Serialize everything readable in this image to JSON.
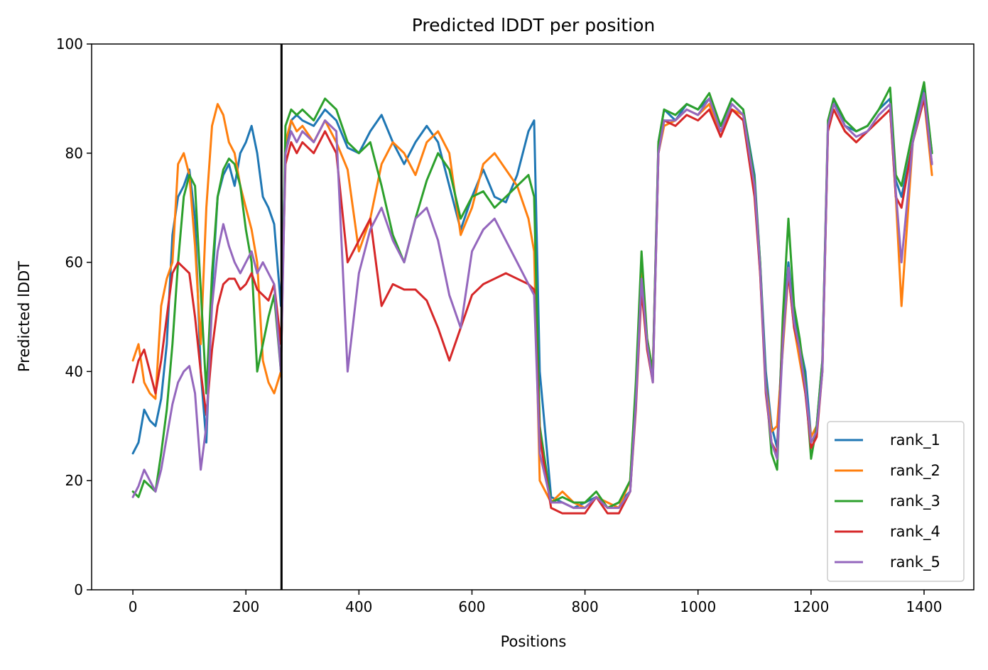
{
  "chart_data": {
    "type": "line",
    "title": "Predicted lDDT per position",
    "xlabel": "Positions",
    "ylabel": "Predicted lDDT",
    "xlim": [
      -73,
      1488
    ],
    "ylim": [
      0,
      100
    ],
    "xticks": [
      0,
      200,
      400,
      600,
      800,
      1000,
      1200,
      1400
    ],
    "yticks": [
      0,
      20,
      40,
      60,
      80,
      100
    ],
    "grid": false,
    "legend_position": "lower-right",
    "vline": {
      "x": 263,
      "color": "#000000"
    },
    "series": [
      {
        "name": "rank_1",
        "color": "#1f77b4",
        "x": [
          0,
          10,
          20,
          30,
          40,
          50,
          60,
          70,
          80,
          90,
          100,
          110,
          120,
          130,
          140,
          150,
          160,
          170,
          180,
          190,
          200,
          210,
          220,
          230,
          240,
          250,
          262,
          270,
          280,
          290,
          300,
          320,
          340,
          360,
          380,
          400,
          420,
          440,
          460,
          480,
          500,
          520,
          540,
          560,
          580,
          600,
          620,
          640,
          660,
          680,
          700,
          710,
          720,
          740,
          760,
          780,
          800,
          820,
          840,
          860,
          880,
          890,
          900,
          910,
          920,
          930,
          940,
          960,
          980,
          1000,
          1020,
          1040,
          1060,
          1080,
          1100,
          1110,
          1120,
          1130,
          1140,
          1150,
          1160,
          1170,
          1180,
          1190,
          1200,
          1210,
          1220,
          1230,
          1240,
          1260,
          1280,
          1300,
          1320,
          1340,
          1350,
          1360,
          1380,
          1400,
          1414
        ],
        "y": [
          25,
          27,
          33,
          31,
          30,
          35,
          45,
          65,
          72,
          74,
          77,
          68,
          40,
          27,
          55,
          72,
          76,
          78,
          74,
          80,
          82,
          85,
          80,
          72,
          70,
          67,
          52,
          80,
          86,
          87,
          86,
          85,
          88,
          86,
          81,
          80,
          84,
          87,
          82,
          78,
          82,
          85,
          82,
          74,
          66,
          72,
          77,
          72,
          71,
          76,
          84,
          86,
          40,
          17,
          16,
          15,
          16,
          17,
          15,
          16,
          18,
          35,
          60,
          45,
          40,
          82,
          88,
          86,
          89,
          88,
          90,
          85,
          90,
          88,
          76,
          60,
          40,
          30,
          26,
          48,
          60,
          50,
          45,
          40,
          28,
          30,
          42,
          85,
          90,
          85,
          84,
          85,
          88,
          90,
          75,
          72,
          82,
          92,
          80
        ]
      },
      {
        "name": "rank_2",
        "color": "#ff7f0e",
        "x": [
          0,
          10,
          20,
          30,
          40,
          50,
          60,
          70,
          80,
          90,
          100,
          110,
          120,
          130,
          140,
          150,
          160,
          170,
          180,
          190,
          200,
          210,
          220,
          230,
          240,
          250,
          262,
          270,
          280,
          290,
          300,
          320,
          340,
          360,
          380,
          400,
          420,
          440,
          460,
          480,
          500,
          520,
          540,
          560,
          580,
          600,
          620,
          640,
          660,
          680,
          700,
          710,
          720,
          740,
          760,
          780,
          800,
          820,
          840,
          860,
          880,
          890,
          900,
          910,
          920,
          930,
          940,
          960,
          980,
          1000,
          1020,
          1040,
          1060,
          1080,
          1100,
          1110,
          1120,
          1130,
          1140,
          1150,
          1160,
          1170,
          1180,
          1190,
          1200,
          1210,
          1220,
          1230,
          1240,
          1260,
          1280,
          1300,
          1320,
          1340,
          1350,
          1360,
          1380,
          1400,
          1414
        ],
        "y": [
          42,
          45,
          38,
          36,
          35,
          52,
          57,
          60,
          78,
          80,
          76,
          63,
          45,
          70,
          85,
          89,
          87,
          82,
          80,
          74,
          70,
          66,
          60,
          42,
          38,
          36,
          40,
          82,
          86,
          84,
          85,
          82,
          86,
          82,
          77,
          62,
          68,
          78,
          82,
          80,
          76,
          82,
          84,
          80,
          65,
          70,
          78,
          80,
          77,
          74,
          68,
          62,
          20,
          16,
          18,
          16,
          15,
          17,
          16,
          15,
          20,
          37,
          58,
          46,
          40,
          80,
          85,
          86,
          88,
          87,
          89,
          83,
          88,
          87,
          74,
          58,
          38,
          29,
          30,
          44,
          58,
          48,
          42,
          36,
          28,
          30,
          40,
          85,
          88,
          84,
          82,
          84,
          86,
          88,
          72,
          52,
          82,
          90,
          76
        ]
      },
      {
        "name": "rank_3",
        "color": "#2ca02c",
        "x": [
          0,
          10,
          20,
          30,
          40,
          50,
          60,
          70,
          80,
          90,
          100,
          110,
          120,
          130,
          140,
          150,
          160,
          170,
          180,
          190,
          200,
          210,
          220,
          230,
          240,
          250,
          262,
          270,
          280,
          290,
          300,
          320,
          340,
          360,
          380,
          400,
          420,
          440,
          460,
          480,
          500,
          520,
          540,
          560,
          580,
          600,
          620,
          640,
          660,
          680,
          700,
          710,
          720,
          740,
          760,
          780,
          800,
          820,
          840,
          860,
          880,
          890,
          900,
          910,
          920,
          930,
          940,
          960,
          980,
          1000,
          1020,
          1040,
          1060,
          1080,
          1100,
          1110,
          1120,
          1130,
          1140,
          1150,
          1160,
          1170,
          1180,
          1190,
          1200,
          1210,
          1220,
          1230,
          1240,
          1260,
          1280,
          1300,
          1320,
          1340,
          1350,
          1360,
          1380,
          1400,
          1414
        ],
        "y": [
          18,
          17,
          20,
          19,
          18,
          25,
          33,
          45,
          60,
          72,
          76,
          74,
          55,
          36,
          58,
          72,
          77,
          79,
          78,
          74,
          66,
          60,
          40,
          45,
          50,
          54,
          40,
          85,
          88,
          87,
          88,
          86,
          90,
          88,
          82,
          80,
          82,
          74,
          65,
          60,
          68,
          75,
          80,
          77,
          68,
          72,
          73,
          70,
          72,
          74,
          76,
          72,
          30,
          16,
          17,
          16,
          16,
          18,
          15,
          16,
          20,
          38,
          62,
          46,
          40,
          82,
          88,
          87,
          89,
          88,
          91,
          85,
          90,
          88,
          75,
          60,
          38,
          25,
          22,
          50,
          68,
          52,
          46,
          38,
          24,
          30,
          42,
          86,
          90,
          86,
          84,
          85,
          88,
          92,
          76,
          74,
          84,
          93,
          80
        ]
      },
      {
        "name": "rank_4",
        "color": "#d62728",
        "x": [
          0,
          10,
          20,
          30,
          40,
          50,
          60,
          70,
          80,
          90,
          100,
          110,
          120,
          130,
          140,
          150,
          160,
          170,
          180,
          190,
          200,
          210,
          220,
          230,
          240,
          250,
          262,
          270,
          280,
          290,
          300,
          320,
          340,
          360,
          380,
          400,
          420,
          440,
          460,
          480,
          500,
          520,
          540,
          560,
          580,
          600,
          620,
          640,
          660,
          680,
          700,
          710,
          720,
          740,
          760,
          780,
          800,
          820,
          840,
          860,
          880,
          890,
          900,
          910,
          920,
          930,
          940,
          960,
          980,
          1000,
          1020,
          1040,
          1060,
          1080,
          1100,
          1110,
          1120,
          1130,
          1140,
          1150,
          1160,
          1170,
          1180,
          1190,
          1200,
          1210,
          1220,
          1230,
          1240,
          1260,
          1280,
          1300,
          1320,
          1340,
          1350,
          1360,
          1380,
          1400,
          1414
        ],
        "y": [
          38,
          42,
          44,
          40,
          36,
          42,
          50,
          58,
          60,
          59,
          58,
          50,
          40,
          32,
          44,
          52,
          56,
          57,
          57,
          55,
          56,
          58,
          55,
          54,
          53,
          56,
          45,
          78,
          82,
          80,
          82,
          80,
          84,
          80,
          60,
          64,
          68,
          52,
          56,
          55,
          55,
          53,
          48,
          42,
          48,
          54,
          56,
          57,
          58,
          57,
          56,
          55,
          28,
          15,
          14,
          14,
          14,
          17,
          14,
          14,
          18,
          33,
          55,
          44,
          38,
          80,
          86,
          85,
          87,
          86,
          88,
          83,
          88,
          86,
          72,
          58,
          36,
          27,
          25,
          46,
          58,
          48,
          44,
          36,
          26,
          28,
          40,
          84,
          88,
          84,
          82,
          84,
          86,
          88,
          72,
          70,
          82,
          90,
          78
        ]
      },
      {
        "name": "rank_5",
        "color": "#9467bd",
        "x": [
          0,
          10,
          20,
          30,
          40,
          50,
          60,
          70,
          80,
          90,
          100,
          110,
          120,
          130,
          140,
          150,
          160,
          170,
          180,
          190,
          200,
          210,
          220,
          230,
          240,
          250,
          262,
          270,
          280,
          290,
          300,
          320,
          340,
          360,
          380,
          400,
          420,
          440,
          460,
          480,
          500,
          520,
          540,
          560,
          580,
          600,
          620,
          640,
          660,
          680,
          700,
          710,
          720,
          740,
          760,
          780,
          800,
          820,
          840,
          860,
          880,
          890,
          900,
          910,
          920,
          930,
          940,
          960,
          980,
          1000,
          1020,
          1040,
          1060,
          1080,
          1100,
          1110,
          1120,
          1130,
          1140,
          1150,
          1160,
          1170,
          1180,
          1190,
          1200,
          1210,
          1220,
          1230,
          1240,
          1260,
          1280,
          1300,
          1320,
          1340,
          1350,
          1360,
          1380,
          1400,
          1414
        ],
        "y": [
          17,
          19,
          22,
          20,
          18,
          22,
          28,
          34,
          38,
          40,
          41,
          36,
          22,
          30,
          52,
          62,
          67,
          63,
          60,
          58,
          60,
          62,
          58,
          60,
          58,
          56,
          40,
          80,
          84,
          82,
          84,
          82,
          86,
          84,
          40,
          58,
          66,
          70,
          64,
          60,
          68,
          70,
          64,
          54,
          48,
          62,
          66,
          68,
          64,
          60,
          56,
          54,
          25,
          16,
          16,
          15,
          15,
          17,
          15,
          15,
          18,
          34,
          57,
          45,
          38,
          80,
          86,
          86,
          88,
          87,
          90,
          84,
          89,
          87,
          74,
          59,
          37,
          27,
          24,
          45,
          59,
          49,
          44,
          37,
          27,
          29,
          40,
          85,
          89,
          85,
          83,
          84,
          87,
          89,
          73,
          60,
          82,
          91,
          78
        ]
      }
    ]
  }
}
